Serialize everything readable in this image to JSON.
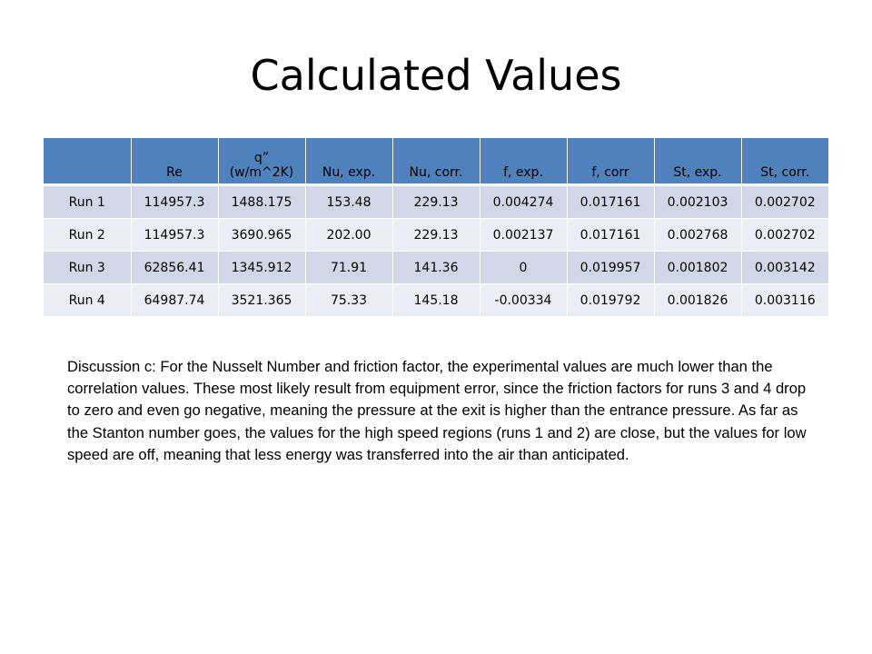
{
  "title": "Calculated Values",
  "table": {
    "headers": [
      "",
      "Re",
      "q”\n(w/m^2K)",
      "Nu, exp.",
      "Nu, corr.",
      "f, exp.",
      "f, corr",
      "St, exp.",
      "St, corr."
    ],
    "rows": [
      [
        "Run 1",
        "114957.3",
        "1488.175",
        "153.48",
        "229.13",
        "0.004274",
        "0.017161",
        "0.002103",
        "0.002702"
      ],
      [
        "Run 2",
        "114957.3",
        "3690.965",
        "202.00",
        "229.13",
        "0.002137",
        "0.017161",
        "0.002768",
        "0.002702"
      ],
      [
        "Run 3",
        "62856.41",
        "1345.912",
        "71.91",
        "141.36",
        "0",
        "0.019957",
        "0.001802",
        "0.003142"
      ],
      [
        "Run 4",
        "64987.74",
        "3521.365",
        "75.33",
        "145.18",
        "-0.00334",
        "0.019792",
        "0.001826",
        "0.003116"
      ]
    ]
  },
  "discussion": "Discussion c: For the Nusselt Number and friction factor, the experimental values are much lower than the correlation values. These most likely result from equipment error, since the friction factors for runs 3 and 4 drop to zero and even go negative, meaning the pressure at the exit is higher than the entrance pressure. As far as the Stanton number goes, the values for the high speed regions (runs 1 and 2) are close, but the values for low speed are off,  meaning that less energy was transferred into the air than anticipated.",
  "colors": {
    "header_bg": "#4f81bd",
    "row_odd": "#d0d8e8",
    "row_even": "#e9edf4"
  }
}
